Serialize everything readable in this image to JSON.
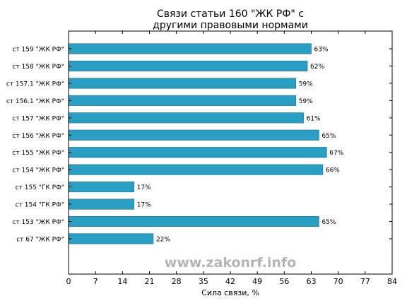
{
  "watermark": "www.zakonrf.info",
  "chart_data": {
    "type": "bar",
    "orientation": "horizontal",
    "title": "Связи статьи 160 \"ЖК РФ\" с другими правовыми нормами",
    "title_lines": [
      "Связи статьи 160 \"ЖК РФ\" с",
      "другими правовыми нормами"
    ],
    "xlabel": "Сила связи, %",
    "ylabel": "",
    "xlim": [
      0,
      84
    ],
    "xticks": [
      0,
      7,
      14,
      21,
      28,
      35,
      42,
      49,
      56,
      63,
      70,
      77,
      84
    ],
    "grid": false,
    "legend": "none",
    "bar_color": "#2a9fc4",
    "categories": [
      "ст 159 \"ЖК РФ\"",
      "ст 158 \"ЖК РФ\"",
      "ст 157.1 \"ЖК РФ\"",
      "ст 156.1 \"ЖК РФ\"",
      "ст 157 \"ЖК РФ\"",
      "ст 156 \"ЖК РФ\"",
      "ст 155 \"ЖК РФ\"",
      "ст 154 \"ЖК РФ\"",
      "ст 155 \"ГК РФ\"",
      "ст 154 \"ГК РФ\"",
      "ст 153 \"ЖК РФ\"",
      "ст 67 \"ЖК РФ\""
    ],
    "values": [
      63,
      62,
      59,
      59,
      61,
      65,
      67,
      66,
      17,
      17,
      65,
      22
    ],
    "value_labels": [
      "63%",
      "62%",
      "59%",
      "59%",
      "61%",
      "65%",
      "67%",
      "66%",
      "17%",
      "17%",
      "65%",
      "22%"
    ]
  }
}
